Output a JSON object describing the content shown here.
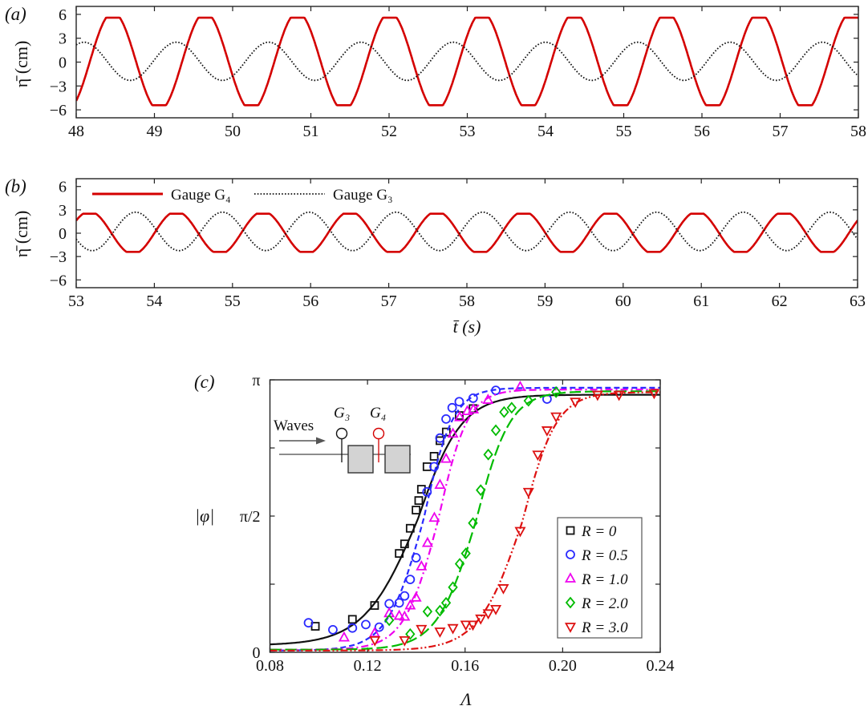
{
  "chart_data": [
    {
      "panel_label": "(a)",
      "type": "line",
      "ylabel": "η̄ (cm)",
      "xlabel": "",
      "xlim": [
        48,
        58
      ],
      "ylim": [
        -7,
        7
      ],
      "xticks": [
        48,
        49,
        50,
        51,
        52,
        53,
        54,
        55,
        56,
        57,
        58
      ],
      "xtick_labels": [
        "48",
        "49",
        "50",
        "51",
        "52",
        "53",
        "54",
        "55",
        "56",
        "57",
        "58"
      ],
      "yticks": [
        -6,
        -3,
        0,
        3,
        6
      ],
      "ytick_labels": [
        "−6",
        "−3",
        "0",
        "3",
        "6"
      ],
      "series": [
        {
          "color": "#d40000",
          "style": "solid",
          "model": "sinusoid",
          "amplitude": 5.5,
          "offset": 0.08,
          "period": 1.18,
          "peak_time": 48.47
        },
        {
          "color": "#111111",
          "style": "dotted",
          "model": "sinusoid",
          "amplitude": 2.4,
          "offset": 0.1,
          "period": 1.18,
          "peak_time": 48.1
        }
      ]
    },
    {
      "panel_label": "(b)",
      "type": "line",
      "ylabel": "η̄ (cm)",
      "xlabel": "t̄ (s)",
      "xlim": [
        53,
        63
      ],
      "ylim": [
        -7,
        7
      ],
      "xticks": [
        53,
        54,
        55,
        56,
        57,
        58,
        59,
        60,
        61,
        62,
        63
      ],
      "xtick_labels": [
        "53",
        "54",
        "55",
        "56",
        "57",
        "58",
        "59",
        "60",
        "61",
        "62",
        "63"
      ],
      "yticks": [
        -6,
        -3,
        0,
        3,
        6
      ],
      "ytick_labels": [
        "−6",
        "−3",
        "0",
        "3",
        "6"
      ],
      "legend_position": "top-left",
      "series": [
        {
          "name": "Gauge G₄",
          "color": "#d40000",
          "style": "solid",
          "model": "sinusoid",
          "amplitude": 2.45,
          "offset": 0.05,
          "period": 1.111,
          "peak_time": 53.17
        },
        {
          "name": "Gauge G₃",
          "color": "#111111",
          "style": "dotted",
          "model": "sinusoid",
          "amplitude": 2.47,
          "offset": 0.23,
          "period": 1.111,
          "peak_time": 53.76
        }
      ]
    },
    {
      "panel_label": "(c)",
      "type": "scatter",
      "xlabel": "Λ",
      "ylabel": "|φ|",
      "xlim": [
        0.08,
        0.24
      ],
      "ylim": [
        0,
        3.1416
      ],
      "xticks": [
        0.08,
        0.12,
        0.16,
        0.2,
        0.24
      ],
      "xtick_labels": [
        "0.08",
        "0.12",
        "0.16",
        "0.20",
        "0.24"
      ],
      "yticks": [
        0,
        1.5708,
        3.1416
      ],
      "ytick_labels": [
        "0",
        "π/2",
        "π"
      ],
      "legend_position": "bottom-right",
      "inset": {
        "waves_label": "Waves",
        "gauge_left": "G₃",
        "gauge_right": "G₄",
        "gauge_left_color": "#111111",
        "gauge_right_color": "#d40000"
      },
      "series": [
        {
          "name": "R = 0",
          "color": "#111111",
          "marker": "square",
          "line": "solid",
          "fit": {
            "low": 0.08,
            "high": 2.97,
            "center": 0.1405,
            "width_low": 0.011,
            "width_high": 0.009
          },
          "x": [
            0.0986,
            0.1138,
            0.1229,
            0.133,
            0.1352,
            0.1375,
            0.1399,
            0.141,
            0.1421,
            0.1444,
            0.1473,
            0.1497,
            0.1523,
            0.1576,
            0.1633
          ],
          "y": [
            0.3,
            0.38,
            0.54,
            1.14,
            1.25,
            1.43,
            1.64,
            1.75,
            1.88,
            2.14,
            2.26,
            2.44,
            2.54,
            2.73,
            2.81
          ]
        },
        {
          "name": "R = 0.5",
          "color": "#2a2aff",
          "marker": "circle",
          "line": "dashed",
          "fit": {
            "low": 0.02,
            "high": 3.05,
            "center": 0.143,
            "width_low": 0.0075,
            "width_high": 0.006
          },
          "x": [
            0.0958,
            0.1058,
            0.1138,
            0.1193,
            0.1248,
            0.1289,
            0.133,
            0.1352,
            0.1375,
            0.1399,
            0.1444,
            0.1473,
            0.1497,
            0.1522,
            0.1547,
            0.1576,
            0.1633,
            0.1726,
            0.1936
          ],
          "y": [
            0.34,
            0.26,
            0.28,
            0.32,
            0.29,
            0.56,
            0.57,
            0.65,
            0.84,
            1.09,
            1.85,
            2.14,
            2.47,
            2.69,
            2.82,
            2.89,
            2.93,
            3.02,
            2.92
          ]
        },
        {
          "name": "R = 1.0",
          "color": "#ee00ee",
          "marker": "triangle-up",
          "line": "dash-dot",
          "fit": {
            "low": 0.03,
            "high": 3.03,
            "center": 0.149,
            "width_low": 0.007,
            "width_high": 0.006
          },
          "x": [
            0.1104,
            0.1229,
            0.1289,
            0.133,
            0.1352,
            0.1375,
            0.1399,
            0.1421,
            0.1446,
            0.1474,
            0.1497,
            0.1522,
            0.155,
            0.1578,
            0.1609,
            0.1634,
            0.1694,
            0.1826
          ],
          "y": [
            0.17,
            0.22,
            0.45,
            0.42,
            0.41,
            0.54,
            0.63,
            0.99,
            1.26,
            1.55,
            1.93,
            2.23,
            2.52,
            2.71,
            2.78,
            2.8,
            2.91,
            3.06
          ]
        },
        {
          "name": "R = 2.0",
          "color": "#00bb00",
          "marker": "diamond",
          "line": "long-dash",
          "fit": {
            "low": 0.03,
            "high": 3.01,
            "center": 0.1645,
            "width_low": 0.008,
            "width_high": 0.007
          },
          "x": [
            0.1289,
            0.1375,
            0.1446,
            0.1497,
            0.1522,
            0.155,
            0.1578,
            0.1603,
            0.1632,
            0.1664,
            0.1695,
            0.1726,
            0.176,
            0.1791,
            0.186,
            0.1973
          ],
          "y": [
            0.37,
            0.21,
            0.47,
            0.48,
            0.57,
            0.75,
            1.02,
            1.14,
            1.49,
            1.87,
            2.28,
            2.56,
            2.77,
            2.82,
            2.9,
            3.0
          ]
        },
        {
          "name": "R = 3.0",
          "color": "#dd1111",
          "marker": "triangle-down",
          "line": "dash-dot-dot",
          "fit": {
            "low": 0.02,
            "high": 3.0,
            "center": 0.1835,
            "width_low": 0.009,
            "width_high": 0.007
          },
          "x": [
            0.123,
            0.1352,
            0.1421,
            0.1497,
            0.155,
            0.1603,
            0.1632,
            0.1664,
            0.1695,
            0.1726,
            0.1757,
            0.1826,
            0.186,
            0.1898,
            0.1936,
            0.1973,
            0.2052,
            0.2143,
            0.2231,
            0.2375
          ],
          "y": [
            0.14,
            0.14,
            0.27,
            0.24,
            0.28,
            0.32,
            0.32,
            0.39,
            0.45,
            0.5,
            0.74,
            1.4,
            1.85,
            2.28,
            2.56,
            2.72,
            2.89,
            2.97,
            2.97,
            2.99
          ]
        }
      ]
    }
  ]
}
